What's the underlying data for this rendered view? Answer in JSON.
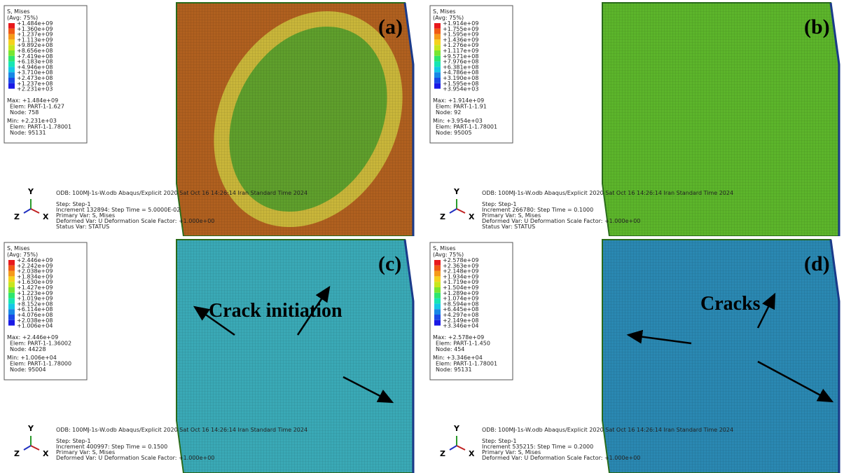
{
  "colorbar_colors": [
    "#e8191c",
    "#f05a14",
    "#f59a1a",
    "#f5d21e",
    "#c8e61e",
    "#78e632",
    "#2ee66e",
    "#18e6b4",
    "#16c8e6",
    "#1888e6",
    "#1a4ae6",
    "#1a1ae6"
  ],
  "panels": [
    {
      "label": "(a)",
      "legend_title": "S, Mises",
      "legend_subtitle": "(Avg: 75%)",
      "legend_values": [
        "+1.484e+09",
        "+1.360e+09",
        "+1.237e+09",
        "+1.113e+09",
        "+9.892e+08",
        "+8.656e+08",
        "+7.419e+08",
        "+6.183e+08",
        "+4.946e+08",
        "+3.710e+08",
        "+2.473e+08",
        "+1.237e+08",
        "+2.231e+03"
      ],
      "max_lines": [
        "Max: +1.484e+09",
        "Elem: PART-1-1.627",
        "Node: 758"
      ],
      "min_lines": [
        "Min: +2.231e+03",
        "Elem: PART-1-1.78001",
        "Node: 95131"
      ],
      "odb_line": "ODB: 100MJ-1s-W.odb    Abaqus/Explicit 2020    Sat Oct 16 14:26:14 Iran Standard Time 2024",
      "step_lines": [
        "Step: Step-1",
        "Increment   132894: Step Time =   5.0000E-02",
        "Primary Var: S, Mises",
        "Deformed Var: U   Deformation Scale Factor: +1.000e+00",
        "Status Var: STATUS"
      ],
      "triad": {
        "y": "Y",
        "z": "Z",
        "x": "X"
      },
      "plate_color": "#b0601f",
      "ring_color": "#c9b63a",
      "center_color": "#5f9f2c"
    },
    {
      "label": "(b)",
      "legend_title": "S, Mises",
      "legend_subtitle": "(Avg: 75%)",
      "legend_values": [
        "+1.914e+09",
        "+1.755e+09",
        "+1.595e+09",
        "+1.436e+09",
        "+1.276e+09",
        "+1.117e+09",
        "+9.571e+08",
        "+7.976e+08",
        "+6.381e+08",
        "+4.786e+08",
        "+3.190e+08",
        "+1.595e+08",
        "+3.954e+03"
      ],
      "max_lines": [
        "Max: +1.914e+09",
        "Elem: PART-1-1.91",
        "Node: 92"
      ],
      "min_lines": [
        "Min: +3.954e+03",
        "Elem: PART-1-1.78001",
        "Node: 95005"
      ],
      "odb_line": "ODB: 100MJ-1s-W.odb    Abaqus/Explicit 2020    Sat Oct 16 14:26:14 Iran Standard Time 2024",
      "step_lines": [
        "Step: Step-1",
        "Increment   266780: Step Time =    0.1000",
        "Primary Var: S, Mises",
        "Deformed Var: U   Deformation Scale Factor: +1.000e+00",
        "Status Var: STATUS"
      ],
      "triad": {
        "y": "Y",
        "z": "Z",
        "x": "X"
      },
      "plate_color": "#5cb52b"
    },
    {
      "label": "(c)",
      "legend_title": "S, Mises",
      "legend_subtitle": "(Avg: 75%)",
      "legend_values": [
        "+2.446e+09",
        "+2.242e+09",
        "+2.038e+09",
        "+1.834e+09",
        "+1.630e+09",
        "+1.427e+09",
        "+1.223e+09",
        "+1.019e+09",
        "+8.152e+08",
        "+6.114e+08",
        "+4.076e+08",
        "+2.038e+08",
        "+1.006e+04"
      ],
      "max_lines": [
        "Max: +2.446e+09",
        "Elem: PART-1-1.36002",
        "Node: 44228"
      ],
      "min_lines": [
        "Min: +1.006e+04",
        "Elem: PART-1-1.78000",
        "Node: 95004"
      ],
      "odb_line": "ODB: 100MJ-1s-W.odb    Abaqus/Explicit 2020    Sat Oct 16 14:26:14 Iran Standard Time 2024",
      "step_lines": [
        "Step: Step-1",
        "Increment   400997: Step Time =    0.1500",
        "Primary Var: S, Mises",
        "Deformed Var: U   Deformation Scale Factor: +1.000e+00"
      ],
      "triad": {
        "y": "Y",
        "z": "Z",
        "x": "X"
      },
      "plate_color": "#3aa9b6",
      "annotation": "Crack initiation"
    },
    {
      "label": "(d)",
      "legend_title": "S, Mises",
      "legend_subtitle": "(Avg: 75%)",
      "legend_values": [
        "+2.578e+09",
        "+2.363e+09",
        "+2.148e+09",
        "+1.934e+09",
        "+1.719e+09",
        "+1.504e+09",
        "+1.289e+09",
        "+1.074e+09",
        "+8.594e+08",
        "+6.445e+08",
        "+4.297e+08",
        "+2.149e+08",
        "+3.346e+04"
      ],
      "max_lines": [
        "Max: +2.578e+09",
        "Elem: PART-1-1.450",
        "Node: 454"
      ],
      "min_lines": [
        "Min: +3.346e+04",
        "Elem: PART-1-1.78001",
        "Node: 95131"
      ],
      "odb_line": "ODB: 100MJ-1s-W.odb    Abaqus/Explicit 2020    Sat Oct 16 14:26:14 Iran Standard Time 2024",
      "step_lines": [
        "Step: Step-1",
        "Increment   535215: Step Time =    0.2000",
        "Primary Var: S, Mises",
        "Deformed Var: U   Deformation Scale Factor: +1.000e+00"
      ],
      "triad": {
        "y": "Y",
        "z": "Z",
        "x": "X"
      },
      "plate_color": "#2a88b2",
      "annotation": "Cracks"
    }
  ]
}
